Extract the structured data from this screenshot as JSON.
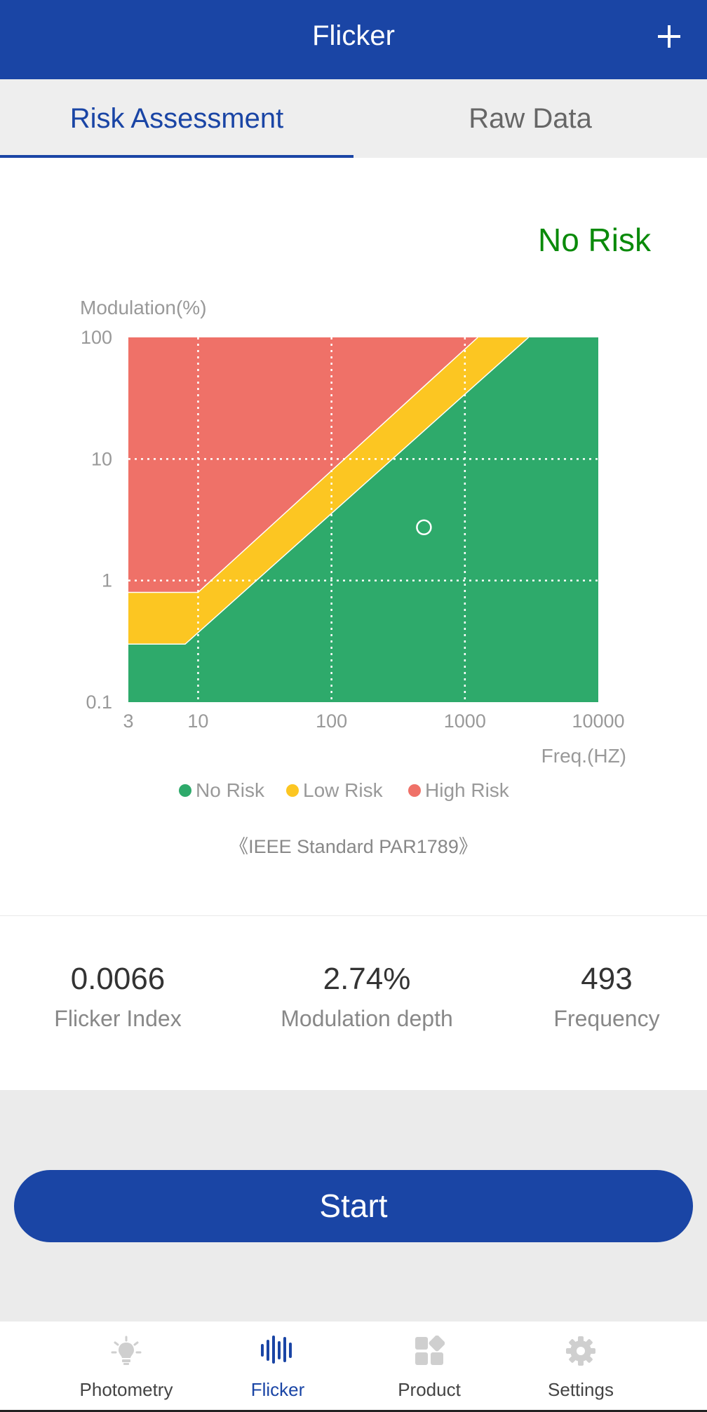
{
  "appbar": {
    "title": "Flicker",
    "add_icon": "plus-icon"
  },
  "tabs": [
    {
      "label": "Risk Assessment",
      "active": true
    },
    {
      "label": "Raw Data",
      "active": false
    }
  ],
  "risk_status": "No Risk",
  "chart_data": {
    "type": "scatter",
    "x_scale": "log",
    "y_scale": "log",
    "xlabel": "Freq.(HZ)",
    "ylabel": "Modulation(%)",
    "xlim": [
      3,
      10000
    ],
    "ylim": [
      0.1,
      100
    ],
    "x_ticks": [
      "3",
      "10",
      "100",
      "1000",
      "10000"
    ],
    "y_ticks": [
      "100",
      "10",
      "1",
      "0.1"
    ],
    "grid": true,
    "regions": [
      {
        "name": "No Risk",
        "color": "#2eaa6b"
      },
      {
        "name": "Low Risk",
        "color": "#fcc622"
      },
      {
        "name": "High Risk",
        "color": "#ef7168"
      }
    ],
    "boundaries": {
      "low_risk_lower": [
        [
          3,
          0.3
        ],
        [
          8,
          0.3
        ],
        [
          3000,
          100
        ]
      ],
      "high_risk_lower": [
        [
          3,
          0.8
        ],
        [
          10,
          0.8
        ],
        [
          1250,
          100
        ]
      ]
    },
    "points": [
      {
        "x": 493,
        "y": 2.74
      }
    ],
    "legend_position": "bottom"
  },
  "standard": "《IEEE Standard PAR1789》",
  "metrics": [
    {
      "value": "0.0066",
      "label": "Flicker Index"
    },
    {
      "value": "2.74%",
      "label": "Modulation depth"
    },
    {
      "value": "493",
      "label": "Frequency"
    }
  ],
  "start_label": "Start",
  "nav": [
    {
      "label": "Photometry",
      "icon": "bulb-icon",
      "active": false
    },
    {
      "label": "Flicker",
      "icon": "waveform-icon",
      "active": true
    },
    {
      "label": "Product",
      "icon": "grid-icon",
      "active": false
    },
    {
      "label": "Settings",
      "icon": "gear-icon",
      "active": false
    }
  ]
}
